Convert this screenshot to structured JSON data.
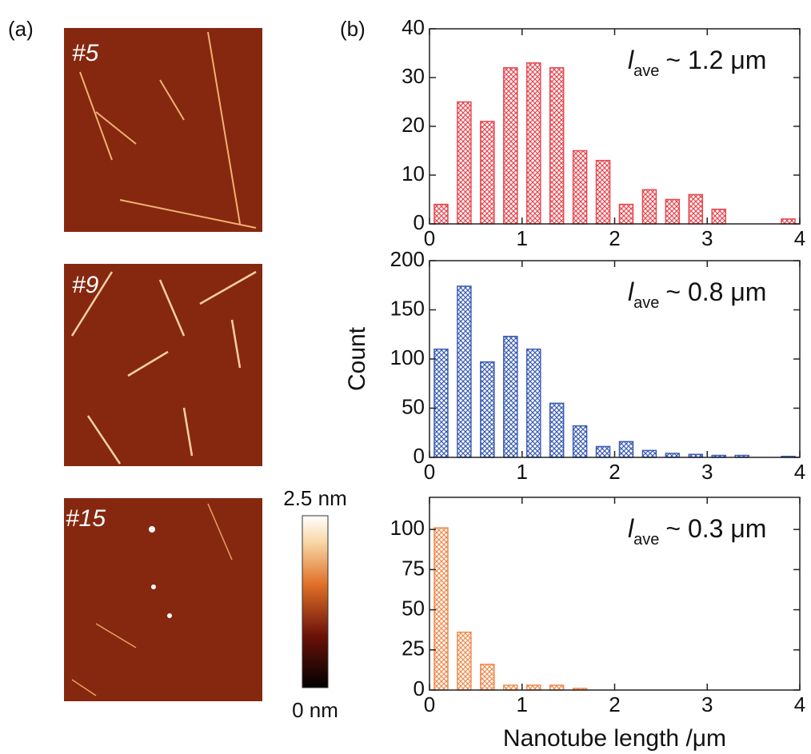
{
  "panel_labels": [
    "(a)",
    "(b)"
  ],
  "images": [
    {
      "label": "#5"
    },
    {
      "label": "#9"
    },
    {
      "label": "#15"
    }
  ],
  "colorbar": {
    "max_label": "2.5 nm",
    "min_label": "0 nm"
  },
  "chart_data": [
    {
      "type": "bar",
      "color": "#e8464e",
      "x": [
        0.125,
        0.375,
        0.625,
        0.875,
        1.125,
        1.375,
        1.625,
        1.875,
        2.125,
        2.375,
        2.625,
        2.875,
        3.125,
        3.375,
        3.625,
        3.875
      ],
      "values": [
        4,
        25,
        21,
        32,
        33,
        32,
        15,
        13,
        4,
        7,
        5,
        6,
        3,
        0,
        0,
        1
      ],
      "xlim": [
        0,
        4
      ],
      "xticks": [
        0,
        1,
        2,
        3,
        4
      ],
      "ylim": [
        0,
        40
      ],
      "yticks": [
        0,
        10,
        20,
        30,
        40
      ],
      "annotation": {
        "symbol": "l",
        "subscript": "ave",
        "text": "~ 1.2 μm"
      }
    },
    {
      "type": "bar",
      "color": "#3a5cb5",
      "ylabel": "Count",
      "x": [
        0.125,
        0.375,
        0.625,
        0.875,
        1.125,
        1.375,
        1.625,
        1.875,
        2.125,
        2.375,
        2.625,
        2.875,
        3.125,
        3.375,
        3.625,
        3.875
      ],
      "values": [
        110,
        174,
        97,
        123,
        110,
        55,
        32,
        11,
        16,
        7,
        4,
        3,
        2,
        2,
        0,
        1
      ],
      "xlim": [
        0,
        4
      ],
      "xticks": [
        0,
        1,
        2,
        3,
        4
      ],
      "ylim": [
        0,
        200
      ],
      "yticks": [
        0,
        50,
        100,
        150,
        200
      ],
      "annotation": {
        "symbol": "l",
        "subscript": "ave",
        "text": "~ 0.8 μm"
      }
    },
    {
      "type": "bar",
      "color": "#f08a4e",
      "xlabel": "Nanotube length /μm",
      "x": [
        0.125,
        0.375,
        0.625,
        0.875,
        1.125,
        1.375,
        1.625
      ],
      "values": [
        101,
        36,
        16,
        3,
        3,
        3,
        1
      ],
      "xlim": [
        0,
        4
      ],
      "xticks": [
        0,
        1,
        2,
        3,
        4
      ],
      "ylim": [
        0,
        120
      ],
      "yticks": [
        0,
        25,
        50,
        75,
        100
      ],
      "annotation": {
        "symbol": "l",
        "subscript": "ave",
        "text": "~ 0.3 μm"
      }
    }
  ]
}
